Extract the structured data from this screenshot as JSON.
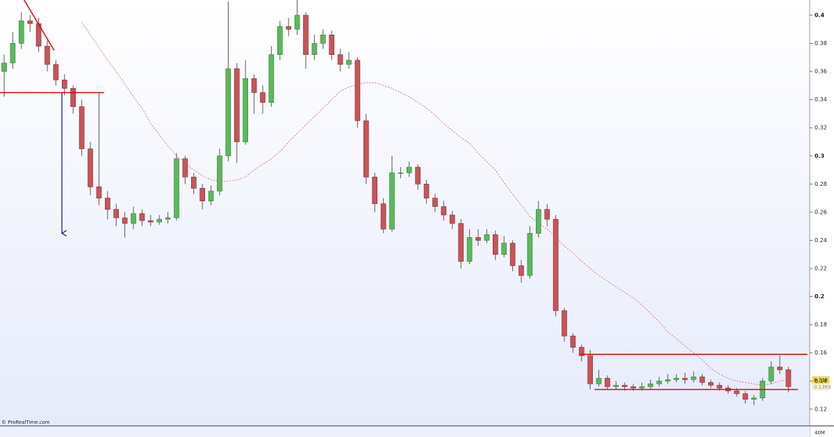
{
  "chart_data": {
    "type": "candlestick",
    "open": [
      0.36,
      0.366,
      0.38,
      0.396,
      0.394,
      0.378,
      0.365,
      0.354,
      0.348,
      0.335,
      0.305,
      0.278,
      0.27,
      0.262,
      0.256,
      0.252,
      0.259,
      0.254,
      0.253,
      0.255,
      0.256,
      0.298,
      0.285,
      0.277,
      0.268,
      0.275,
      0.3,
      0.362,
      0.31,
      0.355,
      0.345,
      0.338,
      0.372,
      0.392,
      0.39,
      0.4,
      0.372,
      0.38,
      0.386,
      0.372,
      0.365,
      0.368,
      0.325,
      0.285,
      0.266,
      0.248,
      0.288,
      0.288,
      0.292,
      0.28,
      0.27,
      0.264,
      0.258,
      0.252,
      0.225,
      0.242,
      0.24,
      0.244,
      0.23,
      0.238,
      0.222,
      0.215,
      0.245,
      0.262,
      0.255,
      0.19,
      0.172,
      0.164,
      0.158,
      0.138,
      0.142,
      0.136,
      0.137,
      0.136,
      0.135,
      0.136,
      0.138,
      0.14,
      0.141,
      0.142,
      0.141,
      0.143,
      0.139,
      0.137,
      0.135,
      0.133,
      0.131,
      0.127,
      0.128,
      0.14,
      0.15,
      0.148
    ],
    "high": [
      0.372,
      0.388,
      0.402,
      0.4,
      0.398,
      0.382,
      0.368,
      0.358,
      0.35,
      0.34,
      0.31,
      0.345,
      0.275,
      0.266,
      0.26,
      0.264,
      0.262,
      0.258,
      0.258,
      0.26,
      0.302,
      0.3,
      0.288,
      0.28,
      0.279,
      0.305,
      0.41,
      0.366,
      0.368,
      0.358,
      0.35,
      0.378,
      0.396,
      0.398,
      0.412,
      0.402,
      0.386,
      0.39,
      0.389,
      0.376,
      0.374,
      0.37,
      0.33,
      0.288,
      0.27,
      0.3,
      0.292,
      0.296,
      0.294,
      0.283,
      0.273,
      0.268,
      0.261,
      0.255,
      0.248,
      0.248,
      0.248,
      0.247,
      0.243,
      0.24,
      0.226,
      0.25,
      0.268,
      0.266,
      0.258,
      0.192,
      0.174,
      0.166,
      0.162,
      0.148,
      0.144,
      0.14,
      0.139,
      0.138,
      0.139,
      0.141,
      0.143,
      0.145,
      0.145,
      0.146,
      0.147,
      0.145,
      0.141,
      0.139,
      0.137,
      0.135,
      0.133,
      0.13,
      0.142,
      0.154,
      0.158,
      0.15
    ],
    "low": [
      0.342,
      0.362,
      0.376,
      0.388,
      0.374,
      0.36,
      0.35,
      0.343,
      0.33,
      0.3,
      0.272,
      0.265,
      0.255,
      0.25,
      0.242,
      0.248,
      0.25,
      0.25,
      0.251,
      0.252,
      0.254,
      0.28,
      0.273,
      0.262,
      0.265,
      0.272,
      0.296,
      0.295,
      0.308,
      0.33,
      0.33,
      0.335,
      0.368,
      0.385,
      0.386,
      0.362,
      0.368,
      0.376,
      0.368,
      0.36,
      0.362,
      0.32,
      0.28,
      0.26,
      0.245,
      0.246,
      0.284,
      0.285,
      0.276,
      0.266,
      0.26,
      0.254,
      0.248,
      0.22,
      0.223,
      0.236,
      0.238,
      0.226,
      0.228,
      0.218,
      0.21,
      0.213,
      0.242,
      0.25,
      0.186,
      0.168,
      0.16,
      0.154,
      0.134,
      0.136,
      0.134,
      0.134,
      0.133,
      0.133,
      0.133,
      0.134,
      0.136,
      0.138,
      0.139,
      0.138,
      0.139,
      0.137,
      0.135,
      0.133,
      0.131,
      0.129,
      0.124,
      0.123,
      0.126,
      0.138,
      0.145,
      0.132
    ],
    "close": [
      0.366,
      0.38,
      0.396,
      0.394,
      0.378,
      0.365,
      0.354,
      0.348,
      0.335,
      0.305,
      0.278,
      0.27,
      0.262,
      0.256,
      0.252,
      0.259,
      0.254,
      0.253,
      0.255,
      0.256,
      0.298,
      0.285,
      0.277,
      0.268,
      0.275,
      0.3,
      0.362,
      0.31,
      0.355,
      0.345,
      0.338,
      0.372,
      0.392,
      0.39,
      0.4,
      0.372,
      0.38,
      0.386,
      0.372,
      0.365,
      0.368,
      0.325,
      0.285,
      0.266,
      0.248,
      0.288,
      0.288,
      0.292,
      0.28,
      0.27,
      0.264,
      0.258,
      0.252,
      0.225,
      0.242,
      0.24,
      0.244,
      0.23,
      0.238,
      0.222,
      0.215,
      0.245,
      0.262,
      0.255,
      0.19,
      0.172,
      0.164,
      0.158,
      0.138,
      0.142,
      0.136,
      0.137,
      0.136,
      0.135,
      0.136,
      0.138,
      0.14,
      0.141,
      0.142,
      0.141,
      0.143,
      0.139,
      0.137,
      0.135,
      0.133,
      0.131,
      0.127,
      0.128,
      0.14,
      0.15,
      0.148,
      0.136
    ],
    "up_color": "#5cb85c",
    "down_color": "#c9545a",
    "moving_average": {
      "color": "#e07070",
      "values": [
        null,
        null,
        null,
        null,
        null,
        null,
        null,
        null,
        null,
        0.395,
        0.386,
        0.377,
        0.368,
        0.36,
        0.351,
        0.342,
        0.334,
        0.323,
        0.315,
        0.307,
        0.3,
        0.295,
        0.29,
        0.286,
        0.283,
        0.282,
        0.282,
        0.283,
        0.285,
        0.29,
        0.294,
        0.298,
        0.303,
        0.31,
        0.316,
        0.322,
        0.328,
        0.334,
        0.34,
        0.346,
        0.349,
        0.351,
        0.352,
        0.352,
        0.35,
        0.348,
        0.345,
        0.342,
        0.338,
        0.334,
        0.329,
        0.323,
        0.318,
        0.313,
        0.309,
        0.302,
        0.296,
        0.29,
        0.281,
        0.273,
        0.265,
        0.257,
        0.252,
        0.248,
        0.242,
        0.236,
        0.231,
        0.225,
        0.22,
        0.215,
        0.211,
        0.207,
        0.203,
        0.199,
        0.194,
        0.188,
        0.182,
        0.175,
        0.17,
        0.165,
        0.16,
        0.155,
        0.149,
        0.145,
        0.142,
        0.14,
        0.139,
        0.138,
        0.137,
        0.138,
        0.14,
        0.141
      ]
    },
    "lines": [
      {
        "x": [
          2.3,
          5.8
        ],
        "values": [
          0.411,
          0.375
        ],
        "color": "#e00000"
      },
      {
        "x": [
          -0.5,
          11.6
        ],
        "values": [
          0.345,
          0.345
        ],
        "color": "#e00000"
      },
      {
        "x": [
          66.9,
          93.2
        ],
        "values": [
          0.159,
          0.159
        ],
        "color": "#e00000"
      },
      {
        "x": [
          68.5,
          92.1
        ],
        "values": [
          0.134,
          0.134
        ],
        "color": "#e00000"
      }
    ],
    "arrow": {
      "x": [
        6.7,
        6.7
      ],
      "values": [
        0.345,
        0.245
      ],
      "color": "#1a1aa8"
    },
    "ylim": [
      0.1091,
      0.4108
    ],
    "yticks": [
      0.4,
      0.38,
      0.36,
      0.34,
      0.32,
      0.3,
      0.28,
      0.26,
      0.24,
      0.22,
      0.2,
      0.18,
      0.16,
      0.14,
      0.12
    ],
    "price_tags": [
      "0.136",
      "0.1363"
    ],
    "volume_label": "40M",
    "credit": "© ProRealTime.com"
  }
}
